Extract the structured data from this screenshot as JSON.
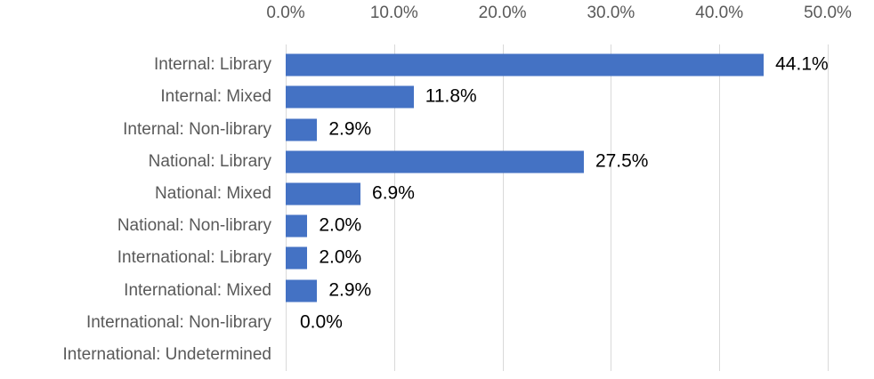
{
  "chart_data": {
    "type": "bar",
    "orientation": "horizontal",
    "title": "",
    "xlabel": "",
    "ylabel": "",
    "categories": [
      "Internal: Library",
      "Internal: Mixed",
      "Internal: Non-library",
      "National: Library",
      "National: Mixed",
      "National: Non-library",
      "International: Library",
      "International: Mixed",
      "International: Non-library",
      "International: Undetermined"
    ],
    "values": [
      44.1,
      11.8,
      2.9,
      27.5,
      6.9,
      2.0,
      2.0,
      2.9,
      0.0,
      null
    ],
    "data_labels": [
      "44.1%",
      "11.8%",
      "2.9%",
      "27.5%",
      "6.9%",
      "2.0%",
      "2.0%",
      "2.9%",
      "0.0%",
      ""
    ],
    "x_ticks": [
      "0.0%",
      "10.0%",
      "20.0%",
      "30.0%",
      "40.0%",
      "50.0%"
    ],
    "x_tick_values": [
      0,
      10,
      20,
      30,
      40,
      50
    ],
    "xlim": [
      0,
      50
    ],
    "axis_position": "top",
    "grid": true,
    "legend": false,
    "colors": {
      "bar": "#4472C4",
      "gridline": "#D9D9D9",
      "axis_text": "#595959",
      "category_text": "#595959",
      "data_label_text": "#000000",
      "background": "#FFFFFF"
    }
  }
}
